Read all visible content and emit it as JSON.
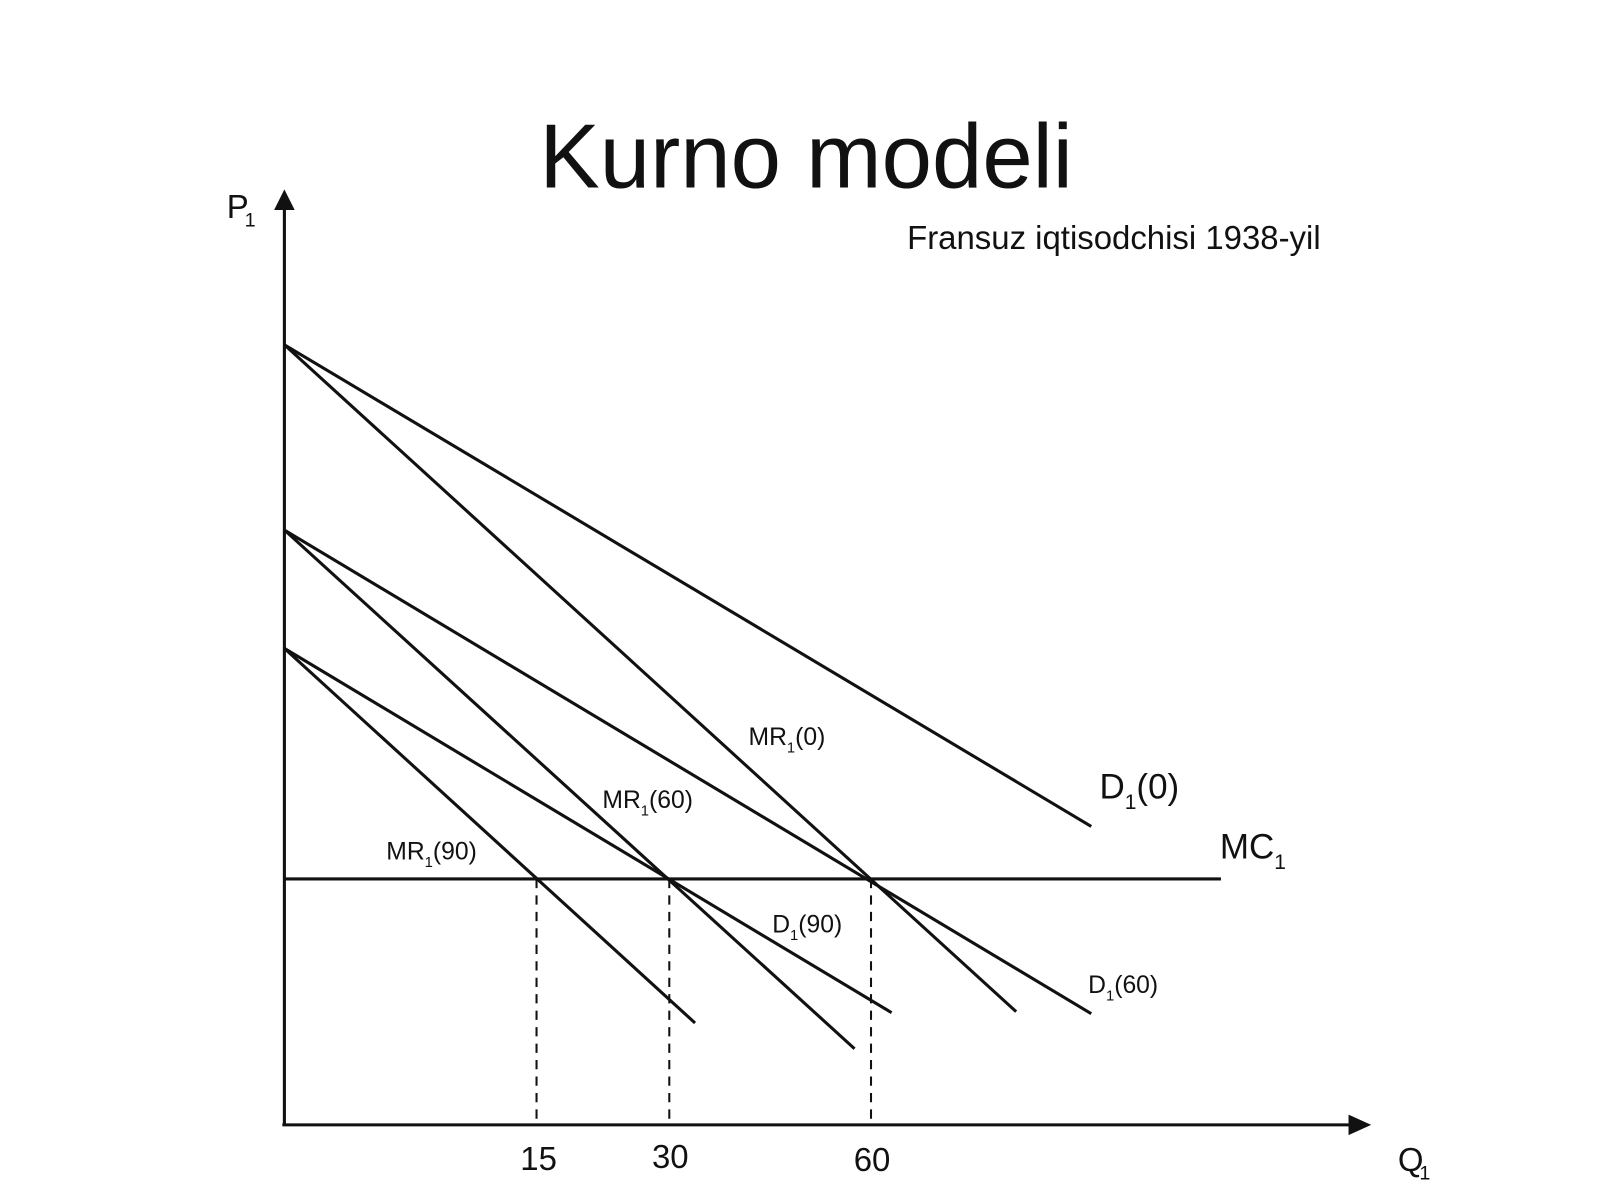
{
  "header": {
    "title": "Kurno modeli",
    "subtitle": "Fransuz iqtisodchisi 1938-yil"
  },
  "axes": {
    "y": {
      "text": "P",
      "sub": "1"
    },
    "x": {
      "text": "Q",
      "sub": "1"
    }
  },
  "x_ticks": [
    "15",
    "30",
    "60"
  ],
  "curves": [
    {
      "text": "D",
      "sub": "1",
      "suffix": "(0)"
    },
    {
      "text": "MR",
      "sub": "1",
      "suffix": "(0)"
    },
    {
      "text": "D",
      "sub": "1",
      "suffix": "(60)"
    },
    {
      "text": "MR",
      "sub": "1",
      "suffix": "(60)"
    },
    {
      "text": "D",
      "sub": "1",
      "suffix": "(90)"
    },
    {
      "text": "MR",
      "sub": "1",
      "suffix": "(90)"
    },
    {
      "text": "MC",
      "sub": "1"
    }
  ]
}
